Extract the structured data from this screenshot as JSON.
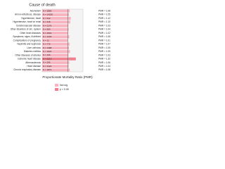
{
  "chart_data": {
    "type": "bar",
    "orientation": "horizontal",
    "title": "Cause of death",
    "x_label": "Proportionate Mortality Ratio (PMR)",
    "categories": [
      "Alcoholism",
      "All non-infectious, disease",
      "Hypertensive, heart",
      "Hypertensive, heart w/ renal",
      "Cerebrovascular disease",
      "Other disorders of circ. system",
      "Other heart diseases",
      "Symptoms, signs, ill-defined",
      "Complications of pregnancy",
      "Nephritis and nephrosis",
      "Liver cirrhosis",
      "Diabetes mellitus",
      "Other diseases of arteries",
      "Ischemic heart disease",
      "Atherosclerosis",
      "Heart disease",
      "Chronic respiratory disease"
    ],
    "values": [
      1.08,
      1.05,
      1.12,
      1.1,
      1.03,
      1.04,
      1.02,
      1.06,
      1.01,
      1.07,
      1.05,
      1.09,
      1.03,
      1.32,
      1.06,
      1.04,
      1.08
    ],
    "value_labels": [
      "PMR = 1.08",
      "PMR = 1.05",
      "PMR = 1.12",
      "PMR = 1.10",
      "PMR = 1.03",
      "PMR = 1.04",
      "PMR = 1.02",
      "PMR = 1.06",
      "PMR = 1.01",
      "PMR = 1.07",
      "PMR = 1.05",
      "PMR = 1.09",
      "PMR = 1.03",
      "PMR = 1.32",
      "PMR = 1.06",
      "PMR = 1.04",
      "PMR = 1.08"
    ],
    "n_labels": [
      "N = 2890",
      "N = 14230",
      "N = 612",
      "N = 318",
      "N = 2176",
      "N = 904",
      "N = 1531",
      "N = 1240",
      "N = 12",
      "N = 775",
      "N = 1388",
      "N = 1024",
      "N = 430",
      "N = 5213",
      "N = 266",
      "N = 3120",
      "N = 1870"
    ],
    "colors": [
      "#f7b3bf",
      "#f7b3bf",
      "#f7b3bf",
      "#f7b3bf",
      "#f7b3bf",
      "#f7b3bf",
      "#f7b3bf",
      "#f7b3bf",
      "#f7b3bf",
      "#f7b3bf",
      "#f7b3bf",
      "#f7b3bf",
      "#f7b3bf",
      "#f08090",
      "#f7b3bf",
      "#f7b3bf",
      "#f7b3bf"
    ],
    "reference": 1,
    "xlim": [
      0,
      1.6
    ],
    "legend": [
      {
        "name": "Not sig.",
        "color": "#f7b3bf"
      },
      {
        "name": "p < 0.05",
        "color": "#f08090"
      }
    ]
  }
}
